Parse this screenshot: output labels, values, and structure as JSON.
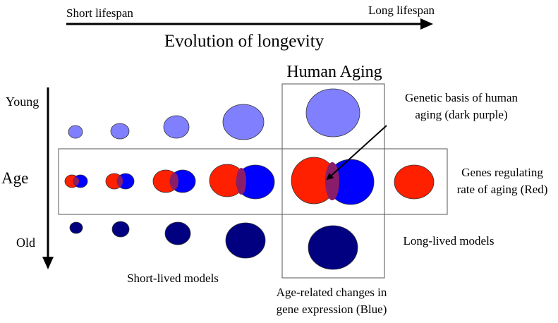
{
  "header": {
    "short_label": "Short lifespan",
    "long_label": "Long lifespan",
    "title": "Evolution of longevity"
  },
  "age_axis": {
    "label": "Age",
    "young_label": "Young",
    "old_label": "Old"
  },
  "human_box": {
    "title": "Human Aging"
  },
  "annotations": {
    "genetic_line1": "Genetic basis of human",
    "genetic_line2": "aging (dark purple)",
    "genes_line1": "Genes regulating",
    "genes_line2": "rate of aging (Red)",
    "long_lived": "Long-lived models",
    "short_lived": "Short-lived models",
    "age_changes_line1": "Age-related changes in",
    "age_changes_line2": "gene expression (Blue)"
  },
  "colors": {
    "young": "#8080ff",
    "red": "#ff2000",
    "blue": "#0000ff",
    "overlap": "#8a1d6a",
    "old": "#000080"
  }
}
